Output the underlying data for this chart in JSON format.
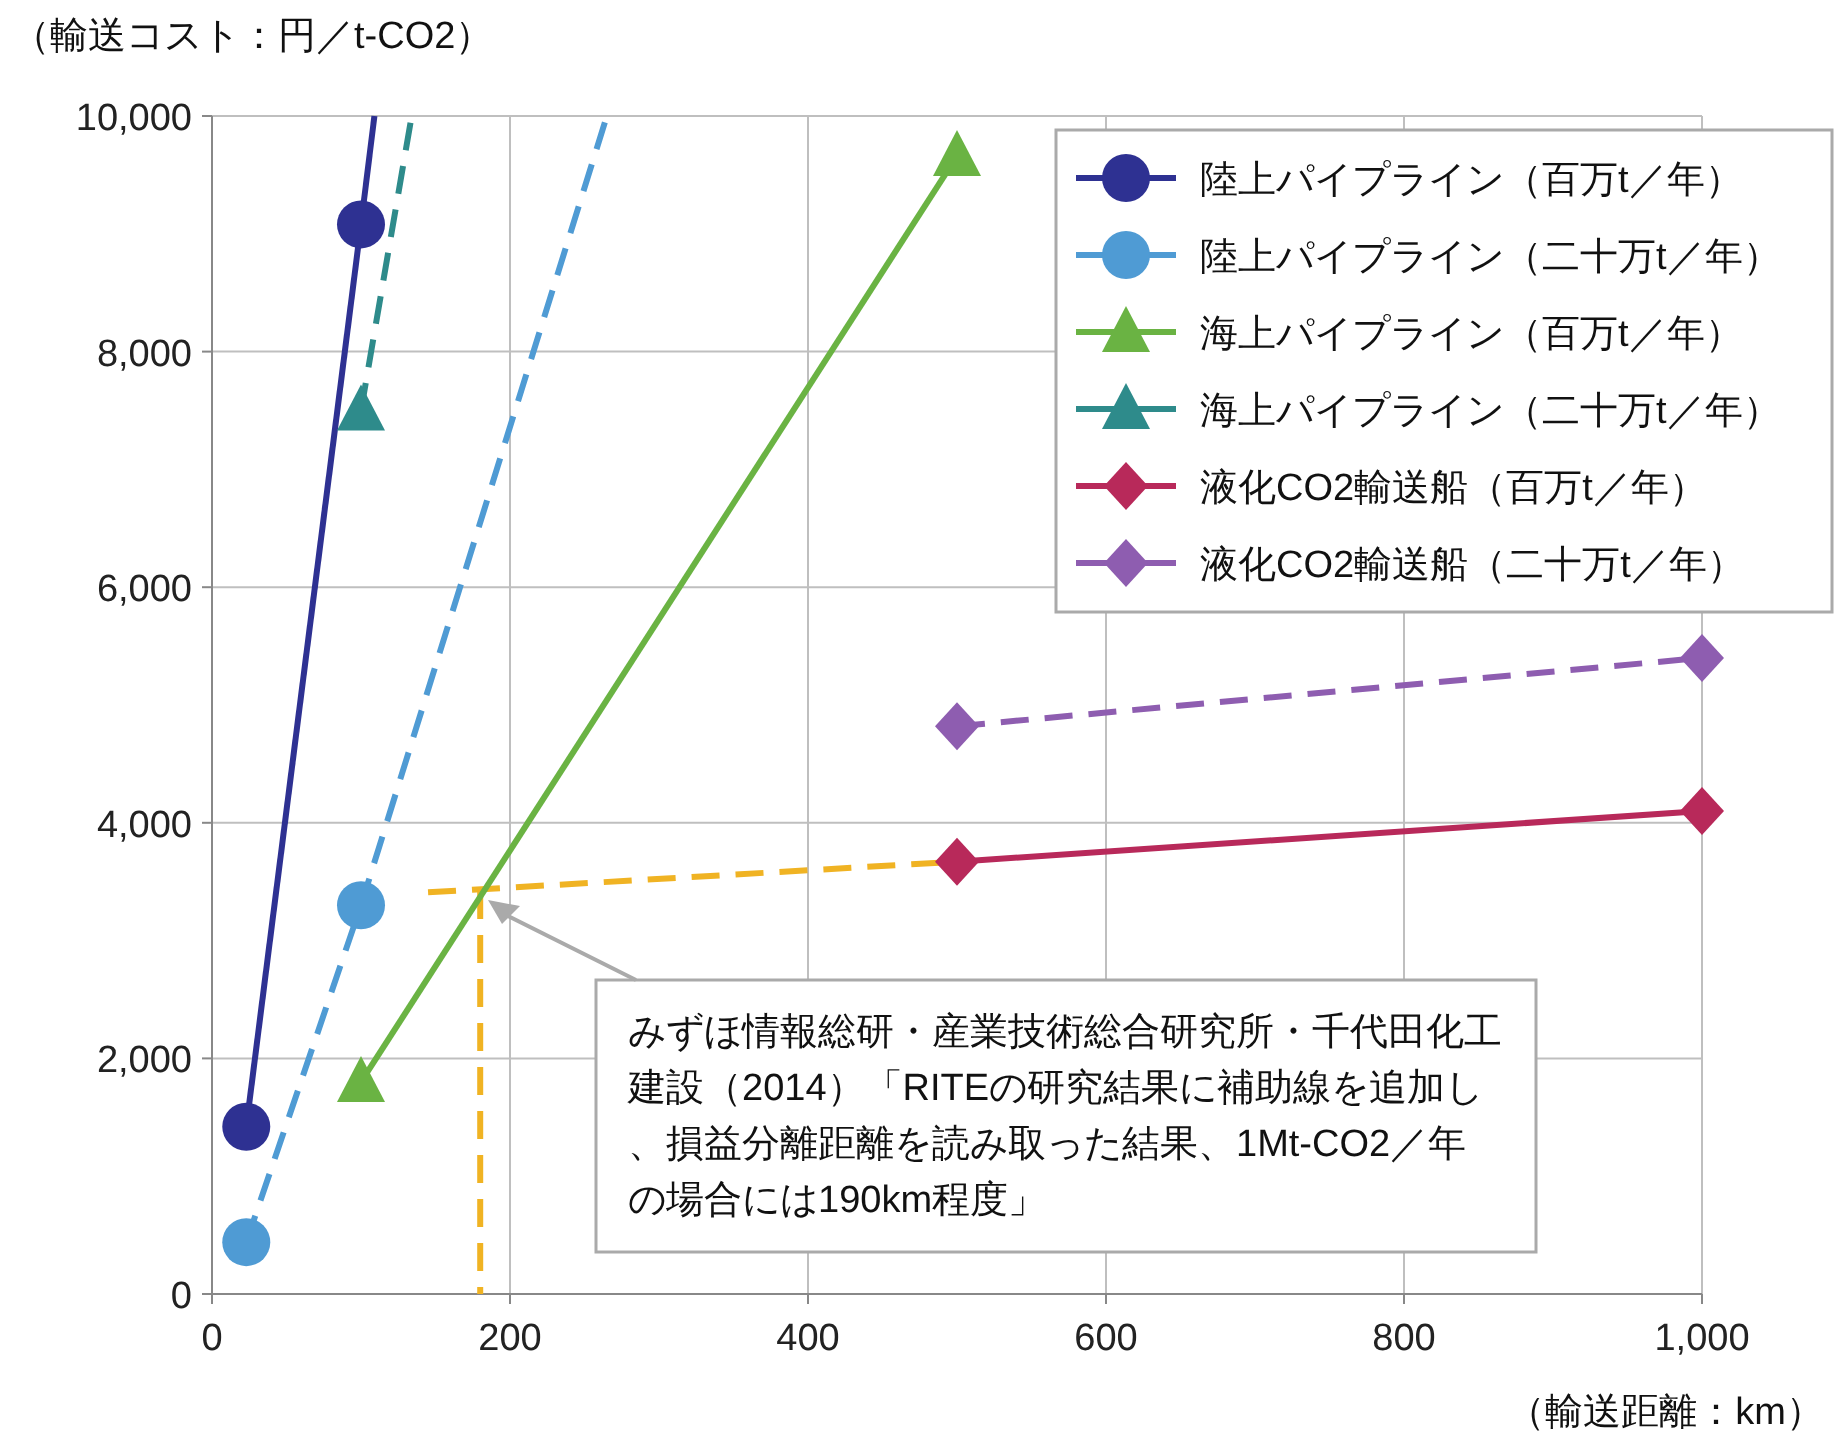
{
  "chart_data": {
    "type": "line",
    "ylabel": "（輸送コスト：円／t-CO2）",
    "xlabel": "（輸送距離：km）",
    "xlim": [
      0,
      1000
    ],
    "ylim": [
      0,
      10000
    ],
    "xticks": [
      0,
      200,
      400,
      600,
      800,
      {
        "value": 1000,
        "label": "1,000"
      }
    ],
    "yticks": [
      0,
      {
        "value": 2000,
        "label": "2,000"
      },
      {
        "value": 4000,
        "label": "4,000"
      },
      {
        "value": 6000,
        "label": "6,000"
      },
      {
        "value": 8000,
        "label": "8,000"
      },
      {
        "value": 10000,
        "label": "10,000"
      }
    ],
    "grid": true,
    "legend": "top right",
    "series": [
      {
        "name": "陸上パイプライン（百万t／年）",
        "color": "#2e3192",
        "x": [
          23,
          100
        ],
        "values": [
          1420,
          9080
        ],
        "marker": "circle",
        "line_style": "solid"
      },
      {
        "name": "陸上パイプライン（二十万t／年）",
        "color": "#4f9bd4",
        "x": [
          23,
          100
        ],
        "values": [
          440,
          3300
        ],
        "marker": "circle",
        "line_style": "dashed"
      },
      {
        "name": "海上パイプライン（百万t／年）",
        "color": "#6ab343",
        "x": [
          100,
          500
        ],
        "values": [
          1800,
          9660
        ],
        "marker": "triangle",
        "line_style": "solid"
      },
      {
        "name": "海上パイプライン（二十万t／年）",
        "color": "#2e8b8b",
        "x": [
          100
        ],
        "values": [
          7500
        ],
        "marker": "triangle",
        "line_style": "dashed"
      },
      {
        "color": "#2e8b8b",
        "x": [
          100,
          134
        ],
        "values": [
          7500,
          10000
        ],
        "marker": "none",
        "line_style": "dashed"
      },
      {
        "name": "液化CO2輸送船（百万t／年）",
        "color": "#b8295a",
        "x": [
          500,
          1000
        ],
        "values": [
          3670,
          4100
        ],
        "marker": "diamond",
        "line_style": "solid"
      },
      {
        "name": "液化CO2輸送船（二十万t／年）",
        "color": "#8e5db0",
        "x": [
          500,
          1000
        ],
        "values": [
          4820,
          5400
        ],
        "marker": "diamond",
        "line_style": "dashed"
      },
      {
        "color": "#2e3192",
        "x": [
          100,
          109
        ],
        "values": [
          9080,
          10000
        ],
        "marker": "none",
        "line_style": "solid"
      },
      {
        "color": "#4f9bd4",
        "x": [
          100,
          265
        ],
        "values": [
          3300,
          10000
        ],
        "marker": "none",
        "line_style": "dashed"
      },
      {
        "color": "#f0b323",
        "x": [
          145,
          500
        ],
        "values": [
          3410,
          3670
        ],
        "marker": "none",
        "line_style": "dashed"
      },
      {
        "color": "#f0b323",
        "x": [
          180,
          180
        ],
        "values": [
          3420,
          0
        ],
        "marker": "none",
        "line_style": "dashed"
      }
    ],
    "annotations": [
      "みずほ情報総研・産業技術総合研究所・千代田化工建設（2014）「RITEの研究結果に補助線を追加し、損益分離距離を読み取った結果、1Mt-CO2／年の場合には190km程度」"
    ]
  }
}
